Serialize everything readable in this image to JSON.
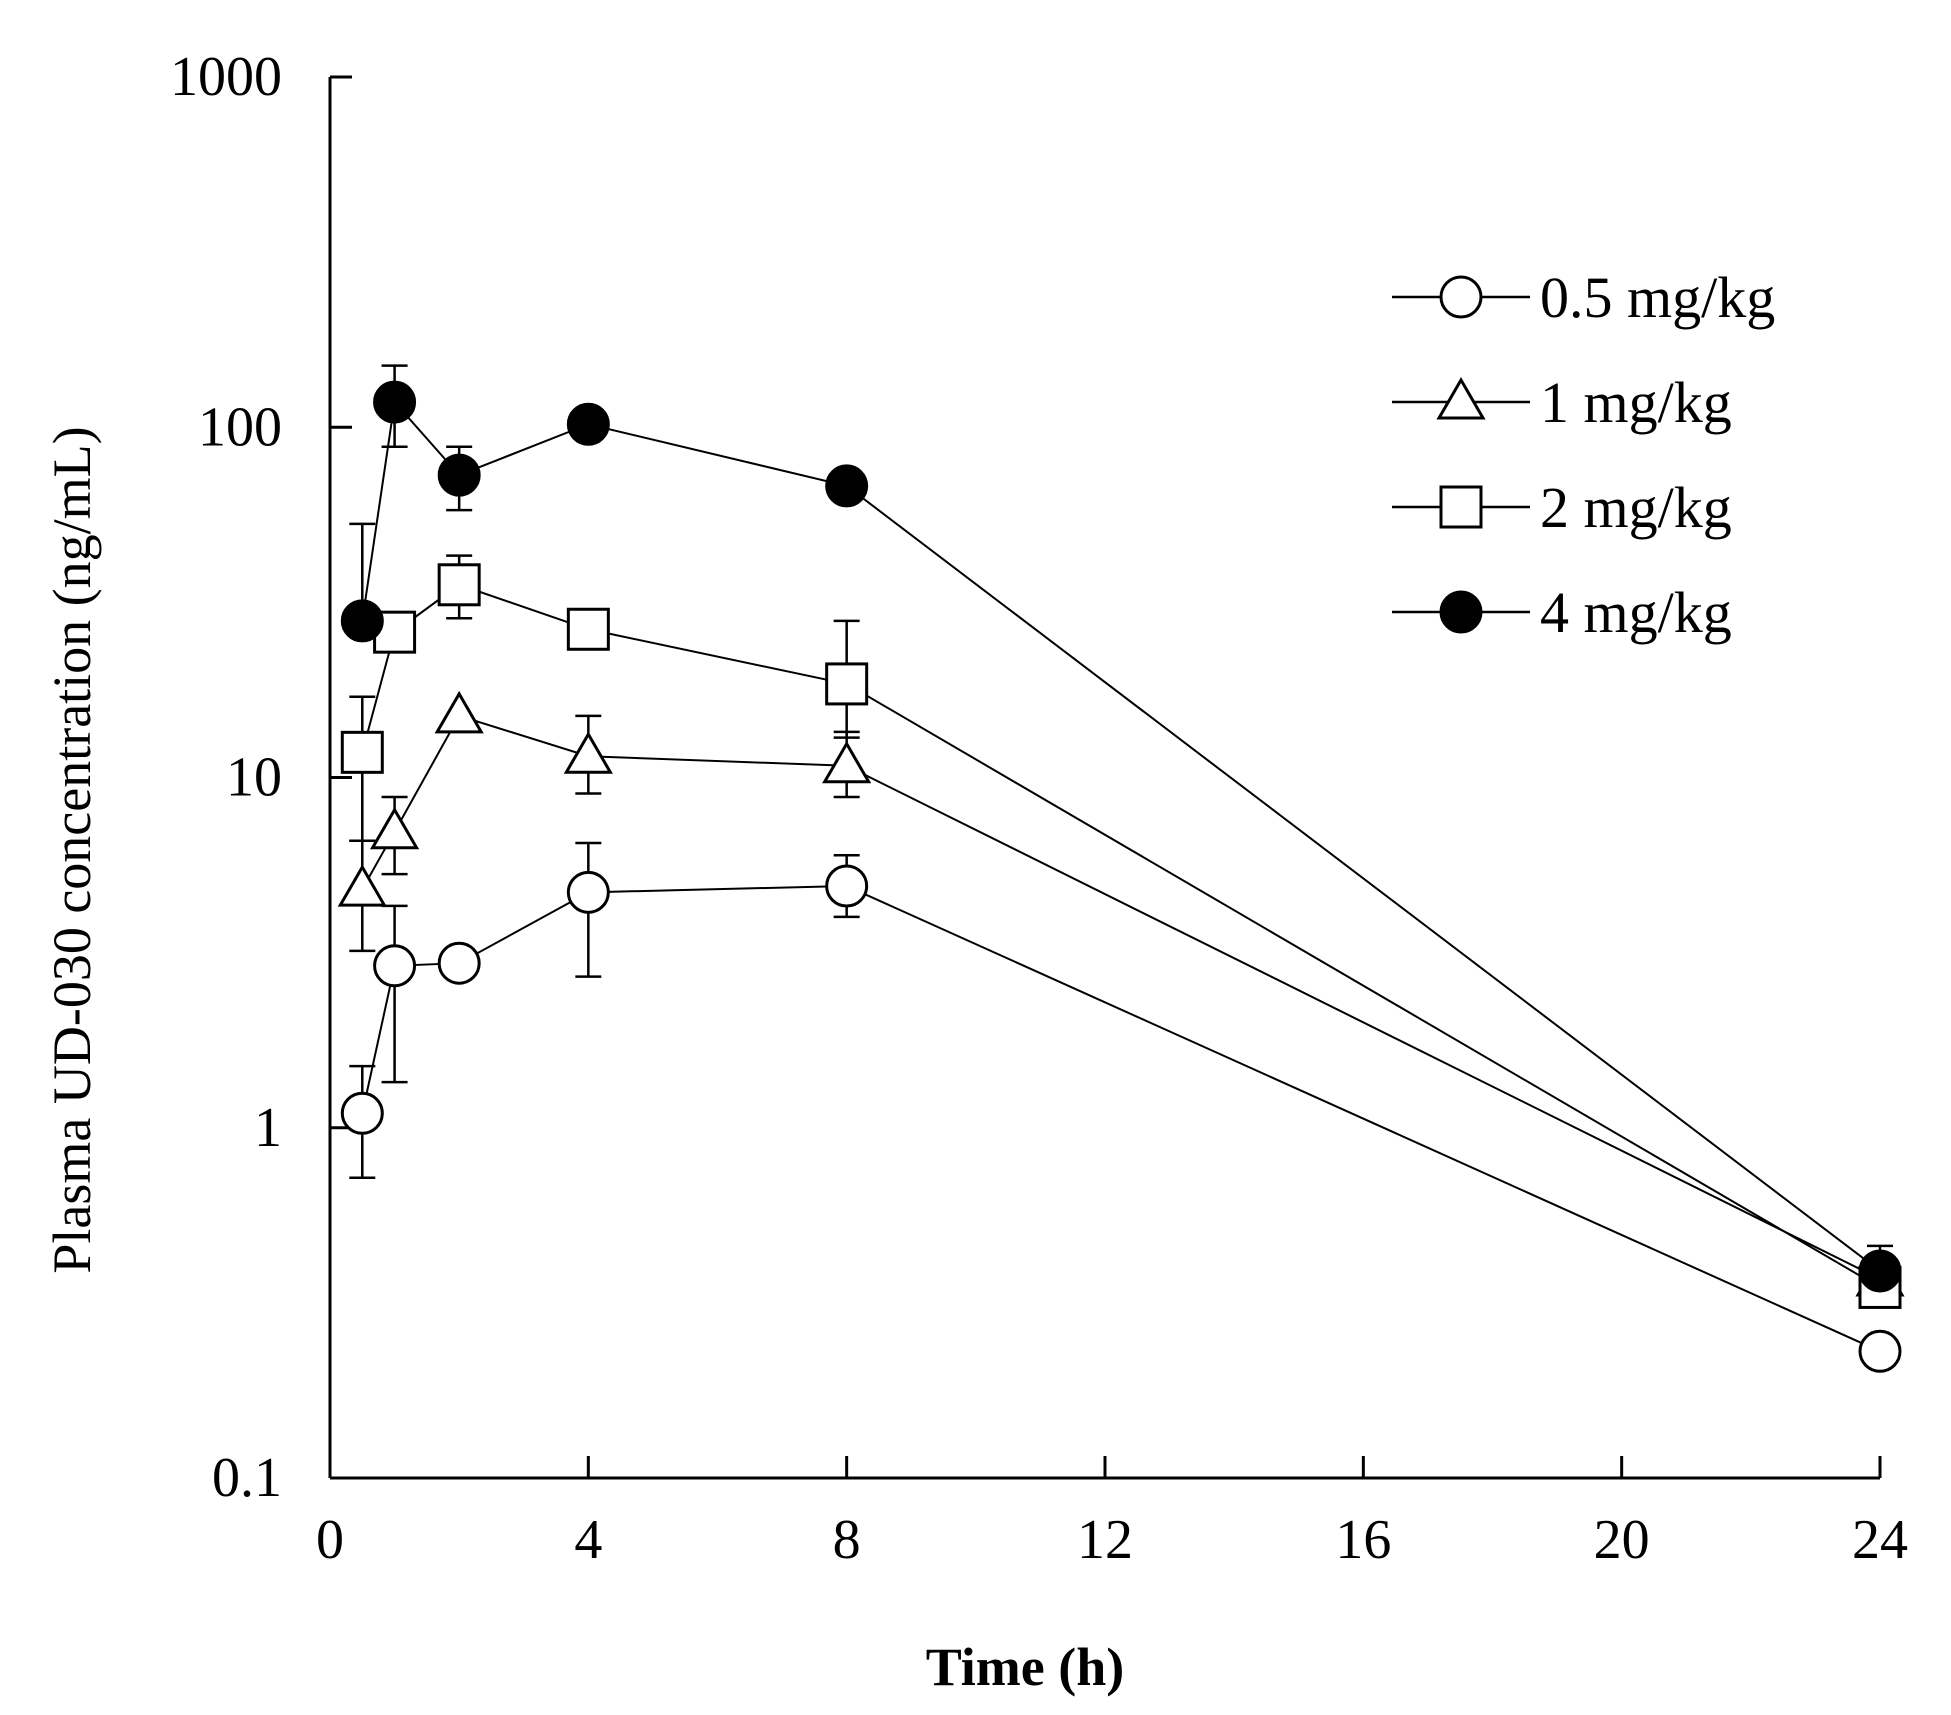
{
  "chart_data": {
    "type": "line",
    "title": "",
    "xlabel": "Time (h)",
    "ylabel": "Plasma UD-030 concentration (ng/mL)",
    "y_scale": "log",
    "xlim": [
      0,
      24
    ],
    "ylim": [
      0.1,
      1000
    ],
    "x_ticks": [
      0,
      4,
      8,
      12,
      16,
      20,
      24
    ],
    "y_ticks": [
      0.1,
      1,
      10,
      100,
      1000
    ],
    "x_tick_labels": [
      "0",
      "4",
      "8",
      "12",
      "16",
      "20",
      "24"
    ],
    "y_tick_labels": [
      "0.1",
      "1",
      "10",
      "100",
      "1000"
    ],
    "grid": false,
    "legend_position": "top-right",
    "series": [
      {
        "name": "0.5 mg/kg",
        "marker": "open-circle",
        "x": [
          0.5,
          1,
          2,
          4,
          8,
          24
        ],
        "values": [
          1.1,
          2.9,
          2.95,
          4.7,
          4.9,
          0.23
        ],
        "err_upper": [
          1.5,
          4.3,
          null,
          6.5,
          6.0,
          null
        ],
        "err_lower": [
          0.72,
          1.35,
          null,
          2.7,
          4.0,
          null
        ]
      },
      {
        "name": "1 mg/kg",
        "marker": "open-triangle",
        "x": [
          0.5,
          1,
          2,
          4,
          8,
          24
        ],
        "values": [
          4.8,
          7.0,
          15.0,
          11.5,
          10.8,
          0.37
        ],
        "err_upper": [
          6.6,
          8.8,
          null,
          15.0,
          13.5,
          null
        ],
        "err_lower": [
          3.2,
          5.3,
          null,
          9.0,
          8.8,
          null
        ]
      },
      {
        "name": "2 mg/kg",
        "marker": "open-square",
        "x": [
          0.5,
          1,
          2,
          4,
          8,
          24
        ],
        "values": [
          11.8,
          26.0,
          35.5,
          26.5,
          18.5,
          0.35
        ],
        "err_upper": [
          17.0,
          null,
          43.0,
          null,
          28.0,
          null
        ],
        "err_lower": [
          6.6,
          null,
          28.5,
          null,
          13.0,
          null
        ]
      },
      {
        "name": "4 mg/kg",
        "marker": "filled-circle",
        "x": [
          0.5,
          1,
          2,
          4,
          8,
          24
        ],
        "values": [
          28.0,
          118.0,
          73.0,
          102.0,
          68.0,
          0.39
        ],
        "err_upper": [
          53.0,
          150.0,
          88.0,
          null,
          null,
          0.46
        ],
        "err_lower": [
          null,
          88.0,
          58.0,
          null,
          null,
          null
        ]
      }
    ]
  }
}
